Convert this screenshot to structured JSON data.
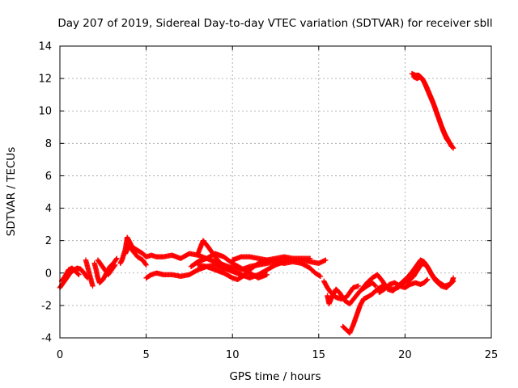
{
  "chart_data": {
    "type": "scatter",
    "title": "Day 207 of 2019, Sidereal Day-to-day VTEC variation (SDTVAR) for receiver sbll",
    "xlabel": "GPS time / hours",
    "ylabel": "SDTVAR / TECUs",
    "xlim": [
      0,
      25
    ],
    "ylim": [
      -4,
      14
    ],
    "xticks": [
      "0",
      "5",
      "10",
      "15",
      "20",
      "25"
    ],
    "yticks": [
      "-4",
      "-2",
      "0",
      "2",
      "4",
      "6",
      "8",
      "10",
      "12",
      "14"
    ],
    "grid": true,
    "marker": "plus",
    "color": "#ff0000",
    "series": [
      {
        "name": "sbll",
        "tracks": [
          [
            [
              0.0,
              -0.9
            ],
            [
              0.2,
              -0.6
            ],
            [
              0.4,
              -0.3
            ],
            [
              0.6,
              0.0
            ],
            [
              0.8,
              0.2
            ],
            [
              1.0,
              0.3
            ],
            [
              1.2,
              0.25
            ],
            [
              1.4,
              0.0
            ],
            [
              1.6,
              -0.3
            ]
          ],
          [
            [
              0.1,
              -0.5
            ],
            [
              0.3,
              -0.2
            ],
            [
              0.5,
              0.2
            ],
            [
              0.7,
              0.3
            ],
            [
              0.9,
              0.1
            ],
            [
              1.1,
              -0.1
            ]
          ],
          [
            [
              1.5,
              0.8
            ],
            [
              1.6,
              0.4
            ],
            [
              1.7,
              0.0
            ],
            [
              1.8,
              -0.4
            ],
            [
              1.9,
              -0.8
            ]
          ],
          [
            [
              2.0,
              0.6
            ],
            [
              2.1,
              0.2
            ],
            [
              2.2,
              -0.3
            ],
            [
              2.3,
              -0.6
            ],
            [
              2.5,
              -0.4
            ],
            [
              2.7,
              0.0
            ],
            [
              2.9,
              0.4
            ],
            [
              3.1,
              0.6
            ],
            [
              3.3,
              0.9
            ]
          ],
          [
            [
              2.2,
              0.8
            ],
            [
              2.4,
              0.5
            ],
            [
              2.6,
              0.2
            ],
            [
              2.8,
              -0.1
            ],
            [
              3.0,
              0.2
            ],
            [
              3.2,
              0.5
            ]
          ],
          [
            [
              3.5,
              0.6
            ],
            [
              3.6,
              0.8
            ],
            [
              3.8,
              1.5
            ],
            [
              3.9,
              2.2
            ],
            [
              4.0,
              2.0
            ],
            [
              4.2,
              1.6
            ],
            [
              4.5,
              1.4
            ],
            [
              4.8,
              1.2
            ],
            [
              5.0,
              1.0
            ],
            [
              5.3,
              1.1
            ],
            [
              5.6,
              1.0
            ],
            [
              6.0,
              1.0
            ],
            [
              6.5,
              1.1
            ],
            [
              7.0,
              0.9
            ],
            [
              7.5,
              1.2
            ],
            [
              8.0,
              1.1
            ],
            [
              8.5,
              0.9
            ],
            [
              9.0,
              0.7
            ],
            [
              9.5,
              0.5
            ],
            [
              10.0,
              0.3
            ],
            [
              10.5,
              0.2
            ],
            [
              11.0,
              0.4
            ],
            [
              11.5,
              0.5
            ],
            [
              12.0,
              0.6
            ],
            [
              12.5,
              0.7
            ],
            [
              13.0,
              0.8
            ],
            [
              13.5,
              0.8
            ],
            [
              14.0,
              0.8
            ],
            [
              14.5,
              0.7
            ],
            [
              15.0,
              0.6
            ],
            [
              15.4,
              0.8
            ]
          ],
          [
            [
              3.8,
              1.2
            ],
            [
              4.0,
              1.7
            ],
            [
              4.2,
              1.4
            ],
            [
              4.5,
              1.0
            ],
            [
              4.8,
              0.8
            ],
            [
              5.0,
              0.5
            ]
          ],
          [
            [
              5.0,
              -0.3
            ],
            [
              5.3,
              -0.1
            ],
            [
              5.6,
              0.0
            ],
            [
              6.0,
              -0.1
            ],
            [
              6.5,
              -0.1
            ],
            [
              7.0,
              -0.2
            ],
            [
              7.5,
              -0.1
            ],
            [
              8.0,
              0.2
            ],
            [
              8.5,
              0.4
            ],
            [
              9.0,
              0.2
            ],
            [
              9.5,
              0.0
            ],
            [
              10.0,
              -0.3
            ],
            [
              10.3,
              -0.4
            ],
            [
              10.6,
              -0.2
            ],
            [
              11.0,
              0.2
            ],
            [
              11.5,
              0.6
            ],
            [
              12.0,
              0.8
            ],
            [
              12.5,
              0.7
            ],
            [
              13.0,
              0.6
            ],
            [
              13.5,
              0.7
            ],
            [
              14.0,
              0.6
            ],
            [
              14.5,
              0.3
            ],
            [
              14.8,
              0.0
            ],
            [
              15.1,
              -0.2
            ]
          ],
          [
            [
              8.0,
              1.2
            ],
            [
              8.3,
              2.0
            ],
            [
              8.6,
              1.6
            ],
            [
              9.0,
              1.0
            ],
            [
              9.3,
              0.6
            ],
            [
              9.6,
              0.3
            ]
          ],
          [
            [
              7.6,
              0.4
            ],
            [
              8.0,
              0.7
            ],
            [
              8.5,
              0.9
            ],
            [
              9.0,
              1.2
            ],
            [
              9.5,
              1.0
            ],
            [
              10.0,
              0.6
            ],
            [
              10.5,
              0.3
            ],
            [
              11.0,
              0.0
            ],
            [
              11.5,
              -0.3
            ],
            [
              12.0,
              -0.1
            ]
          ],
          [
            [
              8.0,
              0.5
            ],
            [
              8.5,
              0.4
            ],
            [
              9.0,
              0.5
            ],
            [
              9.5,
              0.3
            ],
            [
              10.0,
              0.1
            ],
            [
              10.5,
              -0.1
            ],
            [
              11.0,
              -0.3
            ],
            [
              11.5,
              -0.1
            ],
            [
              12.0,
              0.2
            ],
            [
              12.5,
              0.5
            ],
            [
              13.0,
              0.7
            ]
          ],
          [
            [
              10.0,
              0.8
            ],
            [
              10.5,
              1.0
            ],
            [
              11.0,
              1.0
            ],
            [
              11.5,
              0.9
            ],
            [
              12.0,
              0.8
            ],
            [
              12.5,
              0.9
            ],
            [
              13.0,
              1.0
            ],
            [
              13.5,
              0.9
            ],
            [
              14.0,
              0.9
            ],
            [
              14.5,
              0.9
            ]
          ],
          [
            [
              15.3,
              -0.5
            ],
            [
              15.5,
              -0.9
            ],
            [
              15.7,
              -1.2
            ],
            [
              16.0,
              -1.5
            ],
            [
              16.3,
              -1.6
            ],
            [
              16.6,
              -1.5
            ],
            [
              16.8,
              -1.2
            ],
            [
              17.0,
              -0.9
            ],
            [
              17.3,
              -0.8
            ]
          ],
          [
            [
              15.5,
              -1.4
            ],
            [
              15.6,
              -1.9
            ],
            [
              15.8,
              -1.4
            ],
            [
              16.0,
              -1.0
            ],
            [
              16.2,
              -1.2
            ],
            [
              16.5,
              -1.7
            ],
            [
              16.8,
              -1.9
            ],
            [
              17.1,
              -1.5
            ],
            [
              17.4,
              -1.1
            ],
            [
              17.8,
              -0.8
            ],
            [
              18.1,
              -0.6
            ],
            [
              18.3,
              -0.8
            ]
          ],
          [
            [
              16.4,
              -3.3
            ],
            [
              16.6,
              -3.5
            ],
            [
              16.8,
              -3.7
            ],
            [
              17.0,
              -3.2
            ],
            [
              17.2,
              -2.6
            ],
            [
              17.4,
              -2.0
            ],
            [
              17.6,
              -1.6
            ],
            [
              17.8,
              -1.5
            ],
            [
              18.1,
              -1.3
            ],
            [
              18.4,
              -1.0
            ],
            [
              18.7,
              -0.8
            ],
            [
              19.0,
              -0.9
            ],
            [
              19.3,
              -1.0
            ],
            [
              19.6,
              -0.9
            ],
            [
              19.9,
              -0.6
            ],
            [
              20.2,
              -0.5
            ],
            [
              20.5,
              -0.2
            ],
            [
              20.8,
              0.3
            ],
            [
              21.0,
              0.6
            ],
            [
              21.2,
              0.5
            ],
            [
              21.4,
              0.2
            ],
            [
              21.6,
              -0.2
            ],
            [
              21.8,
              -0.5
            ],
            [
              22.1,
              -0.8
            ],
            [
              22.4,
              -0.9
            ],
            [
              22.7,
              -0.6
            ],
            [
              22.8,
              -0.3
            ]
          ],
          [
            [
              17.5,
              -1.0
            ],
            [
              17.8,
              -0.6
            ],
            [
              18.1,
              -0.3
            ],
            [
              18.4,
              -0.1
            ],
            [
              18.7,
              -0.5
            ],
            [
              19.0,
              -1.0
            ],
            [
              19.3,
              -1.1
            ],
            [
              19.6,
              -0.8
            ],
            [
              19.9,
              -0.5
            ],
            [
              20.2,
              -0.2
            ],
            [
              20.5,
              0.2
            ],
            [
              20.7,
              0.5
            ],
            [
              20.9,
              0.8
            ],
            [
              21.1,
              0.7
            ],
            [
              21.3,
              0.4
            ],
            [
              21.5,
              0.0
            ],
            [
              21.7,
              -0.3
            ],
            [
              22.0,
              -0.6
            ],
            [
              22.3,
              -0.8
            ],
            [
              22.6,
              -0.7
            ],
            [
              22.8,
              -0.5
            ]
          ],
          [
            [
              18.5,
              -1.2
            ],
            [
              18.8,
              -1.0
            ],
            [
              19.1,
              -0.7
            ],
            [
              19.4,
              -0.6
            ],
            [
              19.7,
              -0.8
            ],
            [
              20.0,
              -0.9
            ],
            [
              20.3,
              -0.7
            ],
            [
              20.6,
              -0.6
            ],
            [
              20.9,
              -0.7
            ],
            [
              21.1,
              -0.6
            ],
            [
              21.3,
              -0.4
            ]
          ],
          [
            [
              20.4,
              12.3
            ],
            [
              20.6,
              12.2
            ],
            [
              20.8,
              12.2
            ],
            [
              21.0,
              12.0
            ],
            [
              21.2,
              11.6
            ],
            [
              21.4,
              11.1
            ],
            [
              21.6,
              10.6
            ],
            [
              21.8,
              10.0
            ],
            [
              22.0,
              9.4
            ],
            [
              22.2,
              8.8
            ],
            [
              22.4,
              8.3
            ],
            [
              22.6,
              8.0
            ],
            [
              22.8,
              7.7
            ]
          ],
          [
            [
              20.5,
              12.1
            ],
            [
              20.7,
              12.0
            ],
            [
              20.9,
              12.1
            ],
            [
              21.1,
              11.8
            ],
            [
              21.3,
              11.3
            ],
            [
              21.5,
              10.8
            ],
            [
              21.7,
              10.3
            ],
            [
              21.9,
              9.7
            ],
            [
              22.1,
              9.1
            ],
            [
              22.3,
              8.6
            ],
            [
              22.5,
              8.2
            ],
            [
              22.7,
              7.8
            ]
          ]
        ]
      }
    ]
  }
}
